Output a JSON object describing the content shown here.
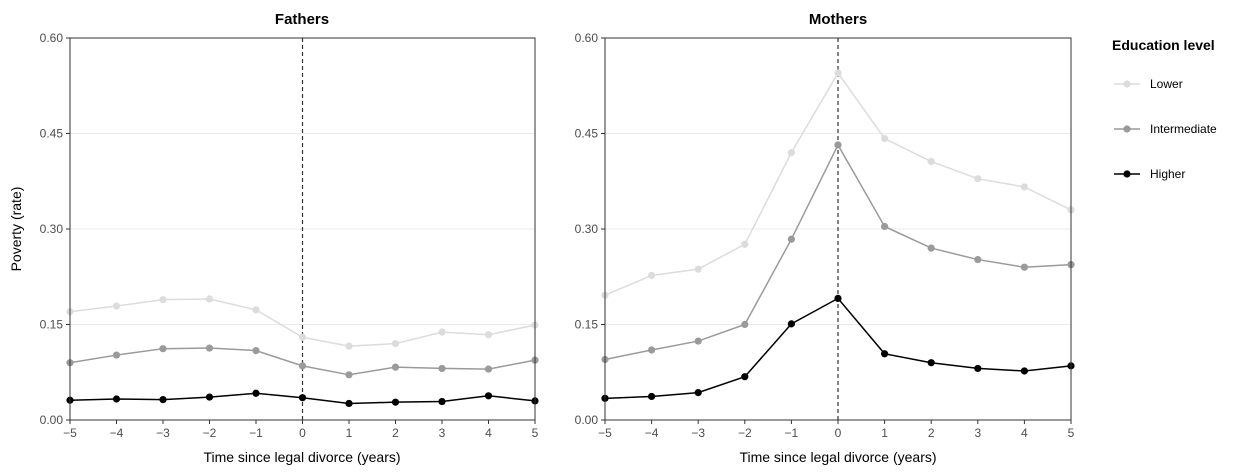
{
  "chart_data": [
    {
      "type": "line",
      "title": "Fathers",
      "xlabel": "Time since legal divorce (years)",
      "ylabel": "Poverty (rate)",
      "xlim": [
        -5,
        5
      ],
      "ylim": [
        0,
        0.6
      ],
      "x_ticks": [
        "−5",
        "−4",
        "−3",
        "−2",
        "−1",
        "0",
        "1",
        "2",
        "3",
        "4",
        "5"
      ],
      "y_ticks": [
        "0.00",
        "0.15",
        "0.30",
        "0.45",
        "0.60"
      ],
      "x": [
        -5,
        -4,
        -3,
        -2,
        -1,
        0,
        1,
        2,
        3,
        4,
        5
      ],
      "reference_line_x": 0,
      "grid": "horizontal",
      "series": [
        {
          "name": "Lower",
          "color": "#dcdcdc",
          "values": [
            0.17,
            0.179,
            0.189,
            0.19,
            0.173,
            0.13,
            0.116,
            0.12,
            0.138,
            0.134,
            0.149
          ]
        },
        {
          "name": "Intermediate",
          "color": "#9a9a9a",
          "values": [
            0.09,
            0.102,
            0.112,
            0.113,
            0.109,
            0.085,
            0.071,
            0.083,
            0.081,
            0.08,
            0.094
          ]
        },
        {
          "name": "Higher",
          "color": "#000000",
          "values": [
            0.031,
            0.033,
            0.032,
            0.036,
            0.042,
            0.035,
            0.026,
            0.028,
            0.029,
            0.038,
            0.03
          ]
        }
      ]
    },
    {
      "type": "line",
      "title": "Mothers",
      "xlabel": "Time since legal divorce (years)",
      "ylabel": "",
      "xlim": [
        -5,
        5
      ],
      "ylim": [
        0,
        0.6
      ],
      "x_ticks": [
        "−5",
        "−4",
        "−3",
        "−2",
        "−1",
        "0",
        "1",
        "2",
        "3",
        "4",
        "5"
      ],
      "y_ticks": [
        "0.00",
        "0.15",
        "0.30",
        "0.45",
        "0.60"
      ],
      "x": [
        -5,
        -4,
        -3,
        -2,
        -1,
        0,
        1,
        2,
        3,
        4,
        5
      ],
      "reference_line_x": 0,
      "grid": "horizontal",
      "series": [
        {
          "name": "Lower",
          "color": "#dcdcdc",
          "values": [
            0.196,
            0.227,
            0.237,
            0.276,
            0.42,
            0.545,
            0.442,
            0.406,
            0.379,
            0.366,
            0.33
          ]
        },
        {
          "name": "Intermediate",
          "color": "#9a9a9a",
          "values": [
            0.095,
            0.11,
            0.124,
            0.15,
            0.284,
            0.432,
            0.304,
            0.27,
            0.252,
            0.24,
            0.244
          ]
        },
        {
          "name": "Higher",
          "color": "#000000",
          "values": [
            0.034,
            0.037,
            0.043,
            0.068,
            0.151,
            0.191,
            0.104,
            0.09,
            0.081,
            0.077,
            0.085
          ]
        }
      ]
    }
  ],
  "legend": {
    "title": "Education level",
    "position": "right",
    "items": [
      {
        "label": "Lower",
        "color": "#dcdcdc"
      },
      {
        "label": "Intermediate",
        "color": "#9a9a9a"
      },
      {
        "label": "Higher",
        "color": "#000000"
      }
    ]
  }
}
